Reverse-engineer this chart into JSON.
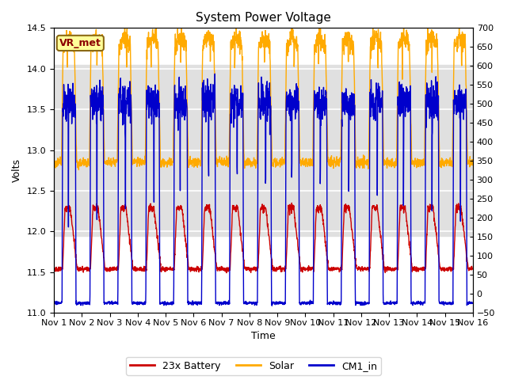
{
  "title": "System Power Voltage",
  "xlabel": "Time",
  "ylabel": "Volts",
  "ylim_left": [
    11.0,
    14.5
  ],
  "ylim_right": [
    -50,
    700
  ],
  "yticks_left": [
    11.0,
    11.5,
    12.0,
    12.5,
    13.0,
    13.5,
    14.0,
    14.5
  ],
  "yticks_right": [
    -50,
    0,
    50,
    100,
    150,
    200,
    250,
    300,
    350,
    400,
    450,
    500,
    550,
    600,
    650,
    700
  ],
  "xlim": [
    0,
    15
  ],
  "xtick_labels": [
    "Nov 1",
    "Nov 2",
    "Nov 3",
    "Nov 4",
    "Nov 5",
    "Nov 6",
    "Nov 7",
    "Nov 8",
    "Nov 9",
    "Nov 10",
    "Nov 11",
    "Nov 12",
    "Nov 13",
    "Nov 14",
    "Nov 15",
    "Nov 16"
  ],
  "xtick_positions": [
    0,
    1,
    2,
    3,
    4,
    5,
    6,
    7,
    8,
    9,
    10,
    11,
    12,
    13,
    14,
    15
  ],
  "legend_labels": [
    "23x Battery",
    "Solar",
    "CM1_in"
  ],
  "legend_colors": [
    "#cc0000",
    "#ffaa00",
    "#0000cc"
  ],
  "annotation_text": "VR_met",
  "annotation_color": "#8b0000",
  "annotation_bg": "#ffff99",
  "annotation_edge": "#8b6914",
  "bg_band_color": "#e0e0e0",
  "bg_band_ymin": 11.95,
  "bg_band_ymax": 14.05,
  "battery_color": "#cc0000",
  "solar_color": "#ffaa00",
  "cm1_color": "#0000cc",
  "title_fontsize": 11,
  "axis_fontsize": 9,
  "tick_fontsize": 8,
  "legend_fontsize": 9,
  "linewidth": 1.0
}
